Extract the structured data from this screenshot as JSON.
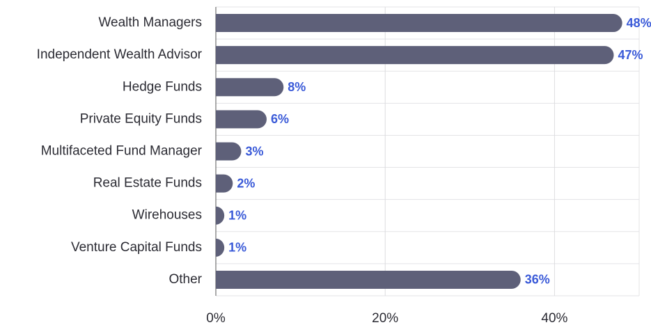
{
  "chart_data": {
    "type": "bar",
    "orientation": "horizontal",
    "categories": [
      "Wealth Managers",
      "Independent Wealth Advisor",
      "Hedge Funds",
      "Private Equity Funds",
      "Multifaceted Fund Manager",
      "Real Estate Funds",
      "Wirehouses",
      "Venture Capital Funds",
      "Other"
    ],
    "values": [
      48,
      47,
      8,
      6,
      3,
      2,
      1,
      1,
      36
    ],
    "value_labels": [
      "48%",
      "47%",
      "8%",
      "6%",
      "3%",
      "2%",
      "1%",
      "1%",
      "36%"
    ],
    "color": "#5e6079",
    "label_color": "#3a5ad8",
    "xlim": [
      0,
      50
    ],
    "xticks": [
      {
        "value": 0,
        "label": "0%"
      },
      {
        "value": 20,
        "label": "20%"
      },
      {
        "value": 40,
        "label": "40%"
      }
    ],
    "grid": true
  }
}
